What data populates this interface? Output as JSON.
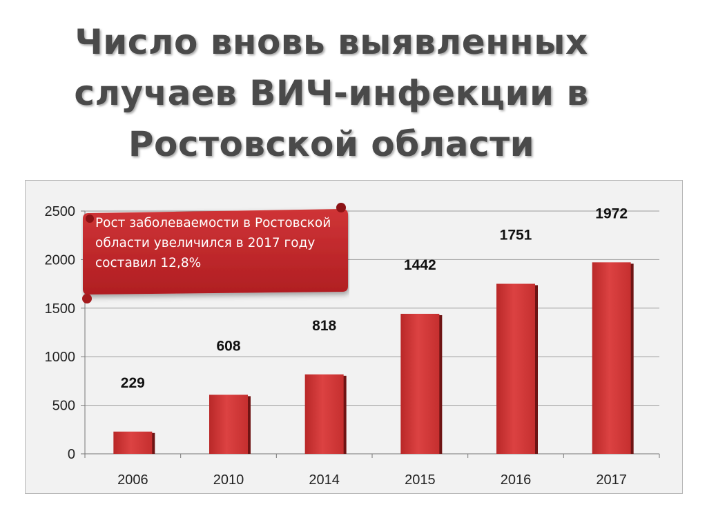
{
  "title": {
    "line1": "Число вновь выявленных",
    "line2": "случаев ВИЧ-инфекции в",
    "line3": "Ростовской области"
  },
  "callout": {
    "text": "Рост заболеваемости в Ростовской области увеличился в 2017 году составил 12,8%",
    "color": "#c8282b"
  },
  "chart_data": {
    "type": "bar",
    "categories": [
      "2006",
      "2010",
      "2014",
      "2015",
      "2016",
      "2017"
    ],
    "values": [
      229,
      608,
      818,
      1442,
      1751,
      1972
    ],
    "data_labels": [
      "229",
      "608",
      "818",
      "1442",
      "1751",
      "1972"
    ],
    "ylim": [
      0,
      2500
    ],
    "yticks": [
      0,
      500,
      1000,
      1500,
      2000,
      2500
    ],
    "grid": true,
    "bar_color": "#d43a3a",
    "bar_shadow_color": "#6e1414"
  }
}
